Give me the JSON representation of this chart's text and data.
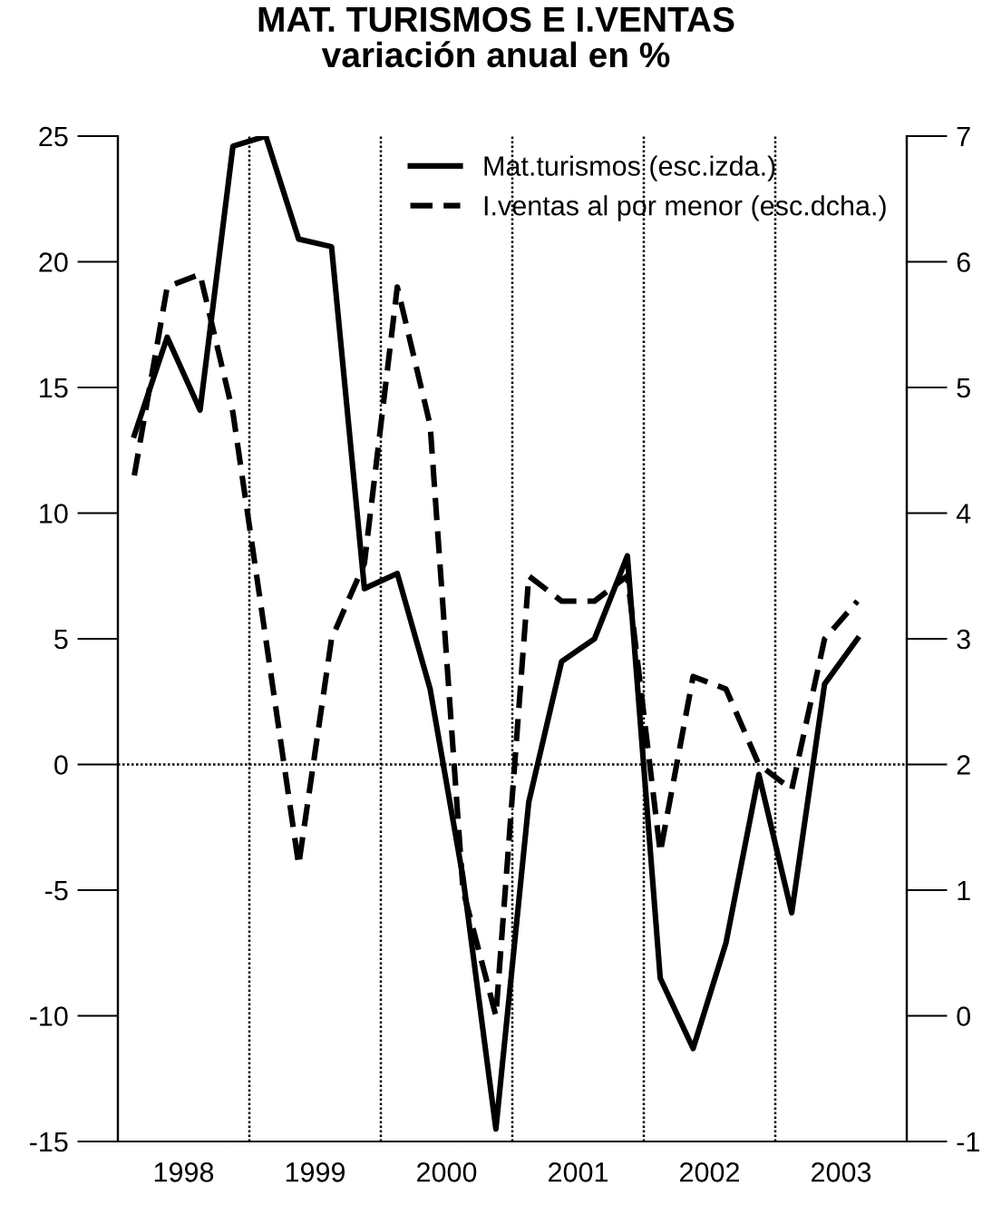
{
  "chart_data": {
    "type": "line",
    "title": "MAT. TURISMOS E I.VENTAS\nvariación anual en %",
    "x": [
      1998.125,
      1998.375,
      1998.625,
      1998.875,
      1999.125,
      1999.375,
      1999.625,
      1999.875,
      2000.125,
      2000.375,
      2000.625,
      2000.875,
      2001.125,
      2001.375,
      2001.625,
      2001.875,
      2002.125,
      2002.375,
      2002.625,
      2002.875,
      2003.125,
      2003.375,
      2003.625
    ],
    "series": [
      {
        "name": "Mat.turismos (esc.izda.)",
        "color": "#000000",
        "line_style": "solid",
        "values": [
          13.1,
          17.0,
          14.1,
          24.6,
          25.0,
          20.9,
          20.6,
          7.0,
          7.6,
          3.0,
          -4.5,
          -14.5,
          -1.5,
          4.1,
          5.0,
          8.3,
          -8.5,
          -11.3,
          -7.1,
          -0.4,
          -5.9,
          3.2,
          5.0
        ]
      },
      {
        "name": "I.ventas al por menor (esc.dcha.)",
        "color": "#000000",
        "line_style": "dashed",
        "axis": "y2",
        "values": [
          4.3,
          5.8,
          5.9,
          4.8,
          3.0,
          1.2,
          3.0,
          3.6,
          5.8,
          4.7,
          1.0,
          0.0,
          3.5,
          3.3,
          3.3,
          3.5,
          1.3,
          2.7,
          2.6,
          2.0,
          1.8,
          3.0,
          3.3
        ]
      }
    ],
    "xlim": [
      1998,
      2004
    ],
    "xticks": [
      {
        "value": 1998.5,
        "label": "1998"
      },
      {
        "value": 1999.5,
        "label": "1999"
      },
      {
        "value": 2000.5,
        "label": "2000"
      },
      {
        "value": 2001.5,
        "label": "2001"
      },
      {
        "value": 2002.5,
        "label": "2002"
      },
      {
        "value": 2003.5,
        "label": "2003"
      }
    ],
    "ylim": [
      -15,
      25
    ],
    "yticks": [
      -15,
      -10,
      -5,
      0,
      5,
      10,
      15,
      20,
      25
    ],
    "y2lim": [
      -1,
      7
    ],
    "y2ticks": [
      -1,
      0,
      1,
      2,
      3,
      4,
      5,
      6,
      7
    ],
    "ref_lines": [
      {
        "axis": "y",
        "value": 0,
        "line_style": "dotted",
        "color": "#000000"
      },
      {
        "axis": "x",
        "value": 1999,
        "line_style": "dotted",
        "color": "#000000"
      },
      {
        "axis": "x",
        "value": 2000,
        "line_style": "dotted",
        "color": "#000000"
      },
      {
        "axis": "x",
        "value": 2001,
        "line_style": "dotted",
        "color": "#000000"
      },
      {
        "axis": "x",
        "value": 2002,
        "line_style": "dotted",
        "color": "#000000"
      },
      {
        "axis": "x",
        "value": 2003,
        "line_style": "dotted",
        "color": "#000000"
      }
    ],
    "legend": "top right",
    "grid": false
  }
}
